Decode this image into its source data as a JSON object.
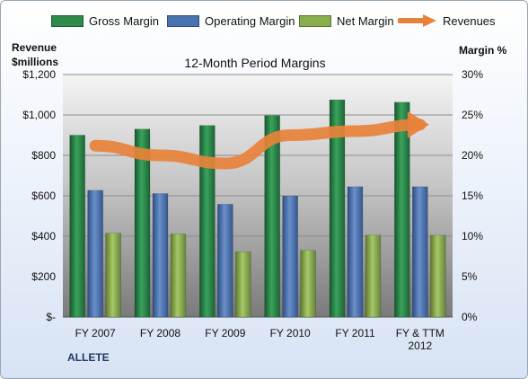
{
  "chart_data": {
    "type": "bar",
    "title": "12-Month Period Margins",
    "left_axis_title_line1": "Revenue",
    "left_axis_title_line2": "$millions",
    "right_axis_title": "Margin %",
    "company": "ALLETE",
    "categories": [
      [
        "FY 2007"
      ],
      [
        "FY 2008"
      ],
      [
        "FY 2009"
      ],
      [
        "FY 2010"
      ],
      [
        "FY 2011"
      ],
      [
        "FY & TTM",
        "2012"
      ]
    ],
    "series": [
      {
        "name": "Gross Margin",
        "color": "#2e8b4a",
        "axis": "left",
        "values": [
          900,
          930,
          948,
          997,
          1075,
          1063
        ]
      },
      {
        "name": "Operating Margin",
        "color": "#4a73b2",
        "axis": "left",
        "values": [
          627,
          611,
          558,
          599,
          645,
          645
        ]
      },
      {
        "name": "Net Margin",
        "color": "#8aae4e",
        "axis": "left",
        "values": [
          415,
          411,
          323,
          330,
          405,
          405
        ]
      },
      {
        "name": "Revenues",
        "color": "#e8823a",
        "axis": "right",
        "type": "line",
        "values": [
          21.2,
          20.0,
          19.0,
          22.5,
          23.0,
          23.8
        ]
      }
    ],
    "y_left": {
      "min": 0,
      "max": 1200,
      "step": 200,
      "tick_labels": [
        "$-",
        "$200",
        "$400",
        "$600",
        "$800",
        "$1,000",
        "$1,200"
      ]
    },
    "y_right": {
      "min": 0,
      "max": 30,
      "step": 5,
      "tick_labels": [
        "0%",
        "5%",
        "10%",
        "15%",
        "20%",
        "25%",
        "30%"
      ]
    },
    "legend_position": "top",
    "grid": true
  }
}
